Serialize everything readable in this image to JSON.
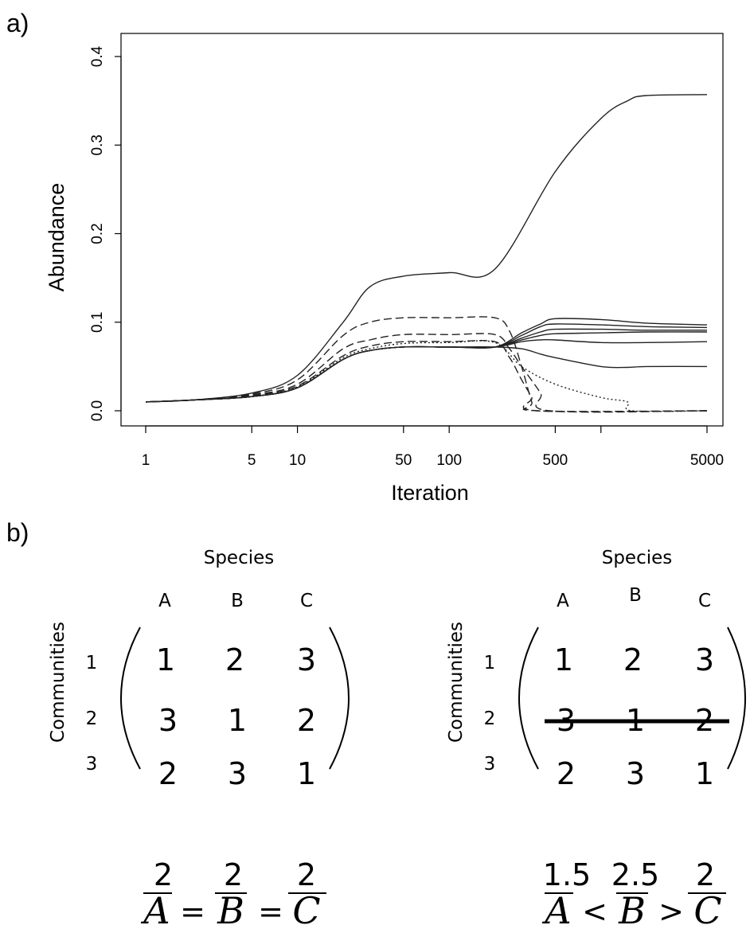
{
  "panel_a_label": "a)",
  "panel_b_label": "b)",
  "chart_data": {
    "type": "line",
    "title": "",
    "xlabel": "Iteration",
    "ylabel": "Abundance",
    "x_scale": "log",
    "xlim": [
      1,
      5000
    ],
    "ylim": [
      0,
      0.4
    ],
    "grid": false,
    "legend": "none",
    "x_ticks": [
      1,
      5,
      10,
      50,
      100,
      500,
      5000
    ],
    "x_tick_labels": [
      "1",
      "5",
      "10",
      "50",
      "100",
      "500",
      "5000"
    ],
    "x_minor_ticks": [
      1000
    ],
    "y_ticks": [
      0.0,
      0.1,
      0.2,
      0.3,
      0.4
    ],
    "y_tick_labels": [
      "0.0",
      "0.1",
      "0.2",
      "0.3",
      "0.4"
    ],
    "series": [
      {
        "style": "solid",
        "points": [
          [
            1,
            0.01
          ],
          [
            2,
            0.012
          ],
          [
            5,
            0.02
          ],
          [
            10,
            0.04
          ],
          [
            20,
            0.1
          ],
          [
            30,
            0.14
          ],
          [
            50,
            0.152
          ],
          [
            100,
            0.156
          ],
          [
            200,
            0.16
          ],
          [
            500,
            0.27
          ],
          [
            1000,
            0.33
          ],
          [
            1500,
            0.35
          ],
          [
            2000,
            0.356
          ],
          [
            5000,
            0.357
          ]
        ]
      },
      {
        "style": "dashed",
        "points": [
          [
            1,
            0.01
          ],
          [
            2,
            0.012
          ],
          [
            5,
            0.019
          ],
          [
            10,
            0.035
          ],
          [
            20,
            0.085
          ],
          [
            30,
            0.1
          ],
          [
            50,
            0.105
          ],
          [
            100,
            0.105
          ],
          [
            200,
            0.105
          ],
          [
            250,
            0.09
          ],
          [
            300,
            0.05
          ],
          [
            350,
            0.01
          ],
          [
            380,
            0.0
          ],
          [
            5000,
            0.0
          ]
        ]
      },
      {
        "style": "dashed",
        "points": [
          [
            1,
            0.01
          ],
          [
            2,
            0.012
          ],
          [
            5,
            0.018
          ],
          [
            10,
            0.03
          ],
          [
            20,
            0.07
          ],
          [
            30,
            0.08
          ],
          [
            50,
            0.086
          ],
          [
            100,
            0.086
          ],
          [
            200,
            0.086
          ],
          [
            250,
            0.07
          ],
          [
            300,
            0.05
          ],
          [
            400,
            0.02
          ],
          [
            460,
            0.0
          ],
          [
            5000,
            0.0
          ]
        ]
      },
      {
        "style": "dashed",
        "points": [
          [
            1,
            0.01
          ],
          [
            2,
            0.012
          ],
          [
            5,
            0.017
          ],
          [
            10,
            0.028
          ],
          [
            20,
            0.062
          ],
          [
            30,
            0.073
          ],
          [
            50,
            0.078
          ],
          [
            100,
            0.078
          ],
          [
            200,
            0.078
          ],
          [
            250,
            0.06
          ],
          [
            300,
            0.035
          ],
          [
            350,
            0.015
          ],
          [
            380,
            0.0
          ],
          [
            5000,
            0.0
          ]
        ]
      },
      {
        "style": "dotted",
        "points": [
          [
            1,
            0.01
          ],
          [
            2,
            0.012
          ],
          [
            5,
            0.016
          ],
          [
            10,
            0.027
          ],
          [
            20,
            0.06
          ],
          [
            30,
            0.07
          ],
          [
            50,
            0.076
          ],
          [
            100,
            0.077
          ],
          [
            200,
            0.077
          ],
          [
            300,
            0.05
          ],
          [
            500,
            0.03
          ],
          [
            1000,
            0.015
          ],
          [
            1500,
            0.01
          ],
          [
            1600,
            0.0
          ],
          [
            5000,
            0.0
          ]
        ]
      },
      {
        "style": "solid",
        "points": [
          [
            1,
            0.01
          ],
          [
            2,
            0.012
          ],
          [
            5,
            0.016
          ],
          [
            10,
            0.026
          ],
          [
            20,
            0.058
          ],
          [
            30,
            0.068
          ],
          [
            50,
            0.072
          ],
          [
            100,
            0.072
          ],
          [
            200,
            0.072
          ],
          [
            300,
            0.088
          ],
          [
            400,
            0.098
          ],
          [
            500,
            0.104
          ],
          [
            1000,
            0.103
          ],
          [
            2000,
            0.099
          ],
          [
            5000,
            0.097
          ]
        ]
      },
      {
        "style": "solid",
        "points": [
          [
            1,
            0.01
          ],
          [
            2,
            0.012
          ],
          [
            5,
            0.016
          ],
          [
            10,
            0.026
          ],
          [
            20,
            0.058
          ],
          [
            30,
            0.068
          ],
          [
            50,
            0.072
          ],
          [
            100,
            0.072
          ],
          [
            200,
            0.072
          ],
          [
            300,
            0.085
          ],
          [
            400,
            0.095
          ],
          [
            500,
            0.098
          ],
          [
            1000,
            0.097
          ],
          [
            2000,
            0.095
          ],
          [
            5000,
            0.094
          ]
        ]
      },
      {
        "style": "solid",
        "points": [
          [
            1,
            0.01
          ],
          [
            2,
            0.012
          ],
          [
            5,
            0.016
          ],
          [
            10,
            0.026
          ],
          [
            20,
            0.058
          ],
          [
            30,
            0.068
          ],
          [
            50,
            0.072
          ],
          [
            100,
            0.072
          ],
          [
            200,
            0.072
          ],
          [
            300,
            0.082
          ],
          [
            400,
            0.089
          ],
          [
            500,
            0.092
          ],
          [
            1000,
            0.092
          ],
          [
            2000,
            0.091
          ],
          [
            5000,
            0.091
          ]
        ]
      },
      {
        "style": "solid",
        "points": [
          [
            1,
            0.01
          ],
          [
            2,
            0.012
          ],
          [
            5,
            0.016
          ],
          [
            10,
            0.026
          ],
          [
            20,
            0.058
          ],
          [
            30,
            0.068
          ],
          [
            50,
            0.072
          ],
          [
            100,
            0.072
          ],
          [
            200,
            0.072
          ],
          [
            300,
            0.08
          ],
          [
            400,
            0.085
          ],
          [
            500,
            0.087
          ],
          [
            1000,
            0.088
          ],
          [
            2000,
            0.089
          ],
          [
            5000,
            0.089
          ]
        ]
      },
      {
        "style": "solid",
        "points": [
          [
            1,
            0.01
          ],
          [
            2,
            0.012
          ],
          [
            5,
            0.016
          ],
          [
            10,
            0.026
          ],
          [
            20,
            0.058
          ],
          [
            30,
            0.068
          ],
          [
            50,
            0.072
          ],
          [
            100,
            0.072
          ],
          [
            200,
            0.072
          ],
          [
            300,
            0.078
          ],
          [
            400,
            0.08
          ],
          [
            500,
            0.08
          ],
          [
            1000,
            0.077
          ],
          [
            2000,
            0.077
          ],
          [
            5000,
            0.078
          ]
        ]
      },
      {
        "style": "solid",
        "points": [
          [
            1,
            0.01
          ],
          [
            2,
            0.012
          ],
          [
            5,
            0.016
          ],
          [
            10,
            0.026
          ],
          [
            20,
            0.058
          ],
          [
            30,
            0.068
          ],
          [
            50,
            0.072
          ],
          [
            100,
            0.072
          ],
          [
            200,
            0.072
          ],
          [
            300,
            0.07
          ],
          [
            400,
            0.064
          ],
          [
            500,
            0.06
          ],
          [
            1000,
            0.05
          ],
          [
            1500,
            0.049
          ],
          [
            2000,
            0.05
          ],
          [
            5000,
            0.05
          ]
        ]
      }
    ]
  },
  "panel_b": {
    "matrices": [
      {
        "species_label": "Species",
        "communities_label": "Communities",
        "columns": [
          "A",
          "B",
          "C"
        ],
        "row_labels": [
          "1",
          "2",
          "3"
        ],
        "rows": [
          [
            "1",
            "2",
            "3"
          ],
          [
            "3",
            "1",
            "2"
          ],
          [
            "2",
            "3",
            "1"
          ]
        ],
        "struck_row": null,
        "means": [
          "2",
          "2",
          "2"
        ],
        "mean_vars": [
          "A",
          "B",
          "C"
        ],
        "operators": [
          "=",
          "="
        ]
      },
      {
        "species_label": "Species",
        "communities_label": "Communities",
        "columns": [
          "A",
          "B",
          "C"
        ],
        "row_labels": [
          "1",
          "2",
          "3"
        ],
        "rows": [
          [
            "1",
            "2",
            "3"
          ],
          [
            "3",
            "1",
            "2"
          ],
          [
            "2",
            "3",
            "1"
          ]
        ],
        "struck_row": 1,
        "means": [
          "1.5",
          "2.5",
          "2"
        ],
        "mean_vars": [
          "A",
          "B",
          "C"
        ],
        "operators": [
          "<",
          ">"
        ]
      }
    ]
  }
}
